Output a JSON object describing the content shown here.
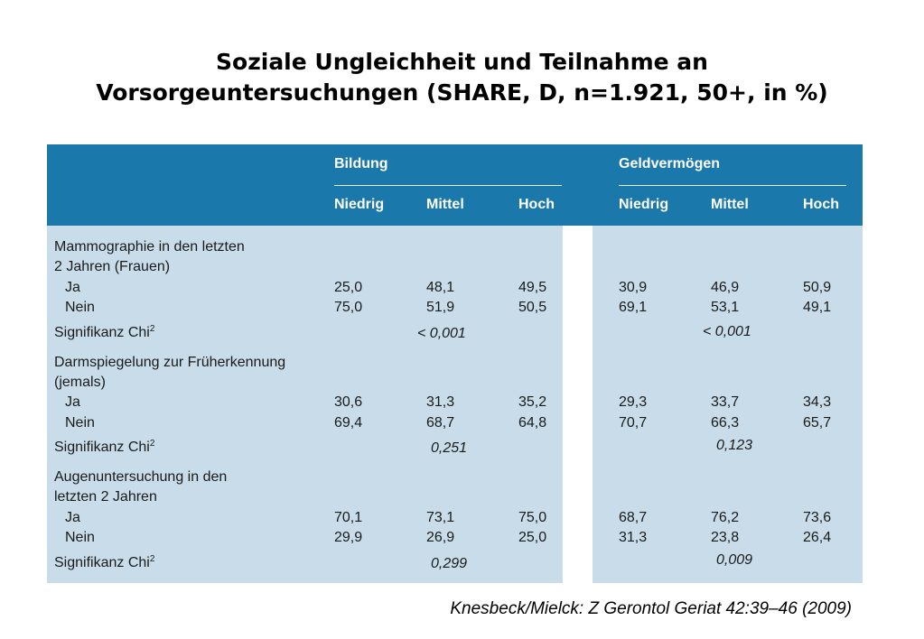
{
  "title": {
    "line1": "Soziale Ungleichheit und Teilnahme an",
    "line2": "Vorsorgeuntersuchungen (SHARE, D, n=1.921, 50+, in %)"
  },
  "table": {
    "groups": [
      "Bildung",
      "Geldvermögen"
    ],
    "columns": [
      "Niedrig",
      "Mittel",
      "Hoch",
      "Niedrig",
      "Mittel",
      "Hoch"
    ],
    "sections": [
      {
        "label_line1": "Mammographie in den letzten",
        "label_line2": "2 Jahren (Frauen)",
        "rows": [
          {
            "label": "Ja",
            "values": [
              "25,0",
              "48,1",
              "49,5",
              "30,9",
              "46,9",
              "50,9"
            ]
          },
          {
            "label": "Nein",
            "values": [
              "75,0",
              "51,9",
              "50,5",
              "69,1",
              "53,1",
              "49,1"
            ]
          }
        ],
        "sig_label": "Signifikanz Chi",
        "sig_exp": "2",
        "sig_bildung": "< 0,001",
        "sig_geld": "< 0,001"
      },
      {
        "label_line1": "Darmspiegelung zur Früherkennung",
        "label_line2": "(jemals)",
        "rows": [
          {
            "label": "Ja",
            "values": [
              "30,6",
              "31,3",
              "35,2",
              "29,3",
              "33,7",
              "34,3"
            ]
          },
          {
            "label": "Nein",
            "values": [
              "69,4",
              "68,7",
              "64,8",
              "70,7",
              "66,3",
              "65,7"
            ]
          }
        ],
        "sig_label": "Signifikanz Chi",
        "sig_exp": "2",
        "sig_bildung": "0,251",
        "sig_geld": "0,123"
      },
      {
        "label_line1": "Augenuntersuchung in den",
        "label_line2": "letzten 2 Jahren",
        "rows": [
          {
            "label": "Ja",
            "values": [
              "70,1",
              "73,1",
              "75,0",
              "68,7",
              "76,2",
              "73,6"
            ]
          },
          {
            "label": "Nein",
            "values": [
              "29,9",
              "26,9",
              "25,0",
              "31,3",
              "23,8",
              "26,4"
            ]
          }
        ],
        "sig_label": "Signifikanz Chi",
        "sig_exp": "2",
        "sig_bildung": "0,299",
        "sig_geld": "0,009"
      }
    ]
  },
  "citation": "Knesbeck/Mielck: Z Gerontol Geriat 42:39–46 (2009)"
}
